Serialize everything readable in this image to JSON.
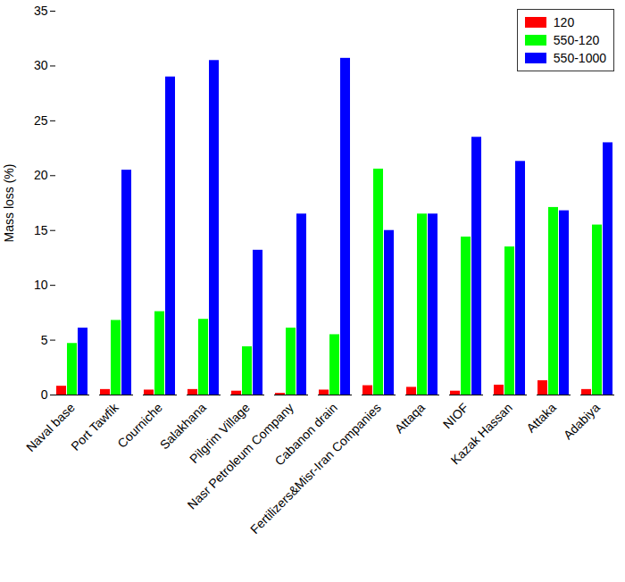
{
  "chart_data": {
    "type": "bar",
    "categories": [
      "Naval base",
      "Port Tawfik",
      "Courniche",
      "Salakhana",
      "Pilgrim Village",
      "Nasr Petroleum Company",
      "Cabanon drain",
      "Fertilizers&Misr-Iran Companies",
      "Attaqa",
      "NIOF",
      "Kazak Hassan",
      "Attaka",
      "Adabiya"
    ],
    "series": [
      {
        "name": "120",
        "color": "#ff0000",
        "values": [
          0.8,
          0.5,
          0.45,
          0.5,
          0.35,
          0.15,
          0.45,
          0.85,
          0.7,
          0.35,
          0.9,
          1.3,
          0.5
        ]
      },
      {
        "name": "550-120",
        "color": "#00ff00",
        "values": [
          4.7,
          6.8,
          7.6,
          6.9,
          4.4,
          6.1,
          5.5,
          20.6,
          16.5,
          14.4,
          13.5,
          17.1,
          15.5
        ]
      },
      {
        "name": "550-1000",
        "color": "#0000ff",
        "values": [
          6.1,
          20.5,
          29.0,
          30.5,
          13.2,
          16.5,
          30.7,
          15.0,
          16.5,
          23.5,
          21.3,
          16.8,
          23.0
        ]
      }
    ],
    "ylabel": "Mass loss (%)",
    "ylim": [
      0,
      35
    ],
    "yticks": [
      0,
      5,
      10,
      15,
      20,
      25,
      30,
      35
    ],
    "legend": "top-right"
  }
}
